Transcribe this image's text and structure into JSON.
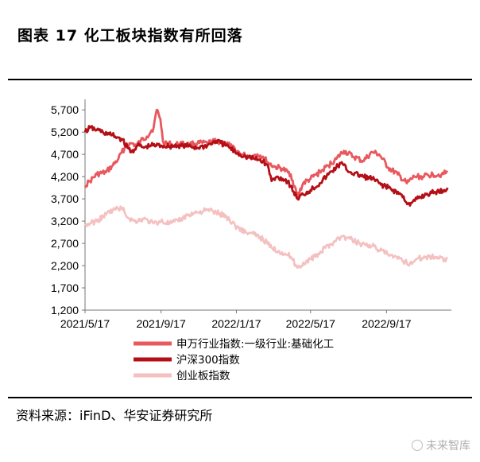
{
  "page": {
    "title": "图表 17 化工板块指数有所回落",
    "source": "资料来源：iFinD、华安证券研究所",
    "watermark": "未来智库"
  },
  "chart_data": {
    "type": "line",
    "title": "化工板块指数有所回落",
    "x_tick_labels": [
      "2021/5/17",
      "2021/9/17",
      "2022/1/17",
      "2022/5/17",
      "2022/9/17"
    ],
    "x_range": [
      "2021-05-17",
      "2022-12-31"
    ],
    "y_tick_labels": [
      "1,200",
      "1,700",
      "2,200",
      "2,700",
      "3,200",
      "3,700",
      "4,200",
      "4,700",
      "5,200",
      "5,700"
    ],
    "ylim": [
      1200,
      5900
    ],
    "grid": false,
    "legend_position": "bottom",
    "series": [
      {
        "name": "申万行业指数:一级行业:基础化工",
        "color": "#e8585d",
        "points": [
          [
            "2021-05-17",
            4000
          ],
          [
            "2021-05-25",
            4100
          ],
          [
            "2021-06-05",
            4250
          ],
          [
            "2021-06-20",
            4300
          ],
          [
            "2021-07-01",
            4450
          ],
          [
            "2021-07-10",
            4600
          ],
          [
            "2021-07-20",
            4850
          ],
          [
            "2021-07-31",
            4950
          ],
          [
            "2021-08-08",
            4900
          ],
          [
            "2021-08-15",
            5000
          ],
          [
            "2021-08-25",
            5100
          ],
          [
            "2021-09-05",
            5300
          ],
          [
            "2021-09-10",
            5700
          ],
          [
            "2021-09-16",
            5500
          ],
          [
            "2021-09-20",
            5000
          ],
          [
            "2021-09-28",
            4950
          ],
          [
            "2021-10-08",
            4900
          ],
          [
            "2021-10-18",
            4950
          ],
          [
            "2021-11-01",
            4920
          ],
          [
            "2021-11-15",
            4950
          ],
          [
            "2021-12-01",
            4950
          ],
          [
            "2021-12-15",
            5000
          ],
          [
            "2022-01-01",
            4950
          ],
          [
            "2022-01-10",
            4850
          ],
          [
            "2022-01-25",
            4700
          ],
          [
            "2022-02-10",
            4650
          ],
          [
            "2022-02-20",
            4700
          ],
          [
            "2022-03-01",
            4650
          ],
          [
            "2022-03-10",
            4500
          ],
          [
            "2022-03-20",
            4420
          ],
          [
            "2022-04-01",
            4380
          ],
          [
            "2022-04-15",
            4250
          ],
          [
            "2022-04-26",
            3750
          ],
          [
            "2022-05-05",
            4050
          ],
          [
            "2022-05-17",
            4150
          ],
          [
            "2022-06-01",
            4300
          ],
          [
            "2022-06-15",
            4450
          ],
          [
            "2022-06-28",
            4600
          ],
          [
            "2022-07-10",
            4780
          ],
          [
            "2022-07-25",
            4650
          ],
          [
            "2022-08-10",
            4550
          ],
          [
            "2022-08-25",
            4750
          ],
          [
            "2022-09-05",
            4700
          ],
          [
            "2022-09-20",
            4400
          ],
          [
            "2022-10-05",
            4250
          ],
          [
            "2022-10-20",
            4050
          ],
          [
            "2022-11-01",
            4200
          ],
          [
            "2022-11-15",
            4200
          ],
          [
            "2022-12-01",
            4250
          ],
          [
            "2022-12-15",
            4250
          ],
          [
            "2022-12-25",
            4300
          ]
        ]
      },
      {
        "name": "沪深300指数",
        "color": "#b40f16",
        "points": [
          [
            "2021-05-17",
            5200
          ],
          [
            "2021-05-25",
            5300
          ],
          [
            "2021-06-05",
            5250
          ],
          [
            "2021-06-15",
            5200
          ],
          [
            "2021-06-25",
            5150
          ],
          [
            "2021-07-05",
            5100
          ],
          [
            "2021-07-15",
            5050
          ],
          [
            "2021-07-25",
            4850
          ],
          [
            "2021-07-31",
            4750
          ],
          [
            "2021-08-10",
            4900
          ],
          [
            "2021-08-20",
            4850
          ],
          [
            "2021-09-01",
            4900
          ],
          [
            "2021-09-17",
            4900
          ],
          [
            "2021-10-01",
            4880
          ],
          [
            "2021-10-15",
            4900
          ],
          [
            "2021-11-01",
            4880
          ],
          [
            "2021-11-15",
            4850
          ],
          [
            "2021-12-01",
            4900
          ],
          [
            "2021-12-15",
            5000
          ],
          [
            "2022-01-01",
            4900
          ],
          [
            "2022-01-15",
            4750
          ],
          [
            "2022-02-01",
            4650
          ],
          [
            "2022-02-15",
            4600
          ],
          [
            "2022-03-01",
            4550
          ],
          [
            "2022-03-10",
            4400
          ],
          [
            "2022-03-15",
            4100
          ],
          [
            "2022-03-25",
            4200
          ],
          [
            "2022-04-10",
            4100
          ],
          [
            "2022-04-26",
            3700
          ],
          [
            "2022-05-05",
            3800
          ],
          [
            "2022-05-17",
            3900
          ],
          [
            "2022-06-01",
            4050
          ],
          [
            "2022-06-15",
            4250
          ],
          [
            "2022-07-05",
            4500
          ],
          [
            "2022-07-20",
            4300
          ],
          [
            "2022-08-10",
            4200
          ],
          [
            "2022-08-25",
            4150
          ],
          [
            "2022-09-05",
            4050
          ],
          [
            "2022-09-20",
            3950
          ],
          [
            "2022-10-10",
            3800
          ],
          [
            "2022-10-25",
            3550
          ],
          [
            "2022-11-05",
            3700
          ],
          [
            "2022-11-20",
            3800
          ],
          [
            "2022-12-05",
            3850
          ],
          [
            "2022-12-20",
            3900
          ],
          [
            "2022-12-25",
            3950
          ]
        ]
      },
      {
        "name": "创业板指数",
        "color": "#f4c0c0",
        "points": [
          [
            "2021-05-17",
            3100
          ],
          [
            "2021-05-25",
            3150
          ],
          [
            "2021-06-05",
            3200
          ],
          [
            "2021-06-20",
            3350
          ],
          [
            "2021-07-01",
            3450
          ],
          [
            "2021-07-15",
            3500
          ],
          [
            "2021-07-28",
            3250
          ],
          [
            "2021-08-05",
            3200
          ],
          [
            "2021-08-20",
            3250
          ],
          [
            "2021-09-05",
            3150
          ],
          [
            "2021-09-17",
            3200
          ],
          [
            "2021-10-01",
            3150
          ],
          [
            "2021-10-15",
            3200
          ],
          [
            "2021-11-01",
            3350
          ],
          [
            "2021-11-15",
            3400
          ],
          [
            "2021-12-01",
            3450
          ],
          [
            "2021-12-15",
            3400
          ],
          [
            "2022-01-01",
            3300
          ],
          [
            "2022-01-15",
            3100
          ],
          [
            "2022-02-01",
            2950
          ],
          [
            "2022-02-15",
            2900
          ],
          [
            "2022-03-01",
            2800
          ],
          [
            "2022-03-15",
            2600
          ],
          [
            "2022-04-01",
            2500
          ],
          [
            "2022-04-15",
            2400
          ],
          [
            "2022-04-26",
            2150
          ],
          [
            "2022-05-10",
            2300
          ],
          [
            "2022-05-25",
            2400
          ],
          [
            "2022-06-10",
            2600
          ],
          [
            "2022-06-25",
            2750
          ],
          [
            "2022-07-05",
            2850
          ],
          [
            "2022-07-20",
            2800
          ],
          [
            "2022-08-05",
            2700
          ],
          [
            "2022-08-25",
            2650
          ],
          [
            "2022-09-05",
            2550
          ],
          [
            "2022-09-20",
            2450
          ],
          [
            "2022-10-05",
            2350
          ],
          [
            "2022-10-25",
            2250
          ],
          [
            "2022-11-05",
            2350
          ],
          [
            "2022-11-20",
            2400
          ],
          [
            "2022-12-05",
            2400
          ],
          [
            "2022-12-20",
            2350
          ],
          [
            "2022-12-25",
            2380
          ]
        ]
      }
    ]
  }
}
